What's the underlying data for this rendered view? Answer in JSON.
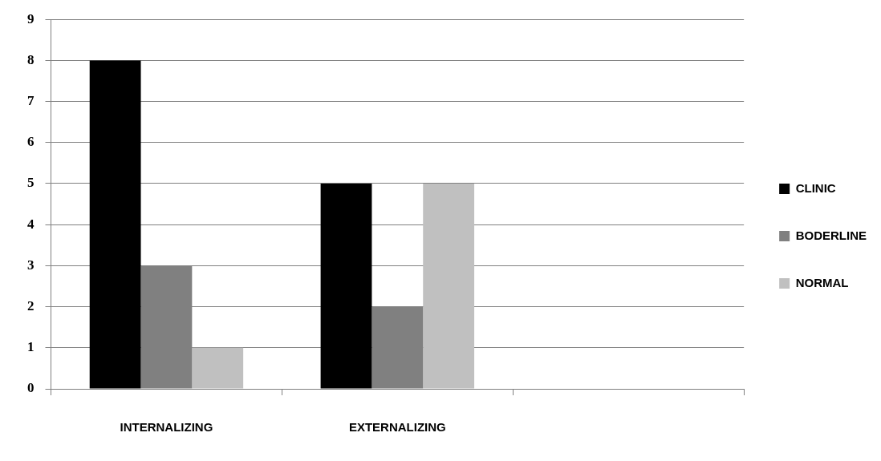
{
  "chart_data": {
    "type": "bar",
    "categories": [
      "INTERNALIZING",
      "EXTERNALIZING",
      null
    ],
    "series": [
      {
        "name": "CLINIC",
        "color": "#000000",
        "values": [
          8,
          5,
          null
        ]
      },
      {
        "name": "BODERLINE",
        "color": "#808080",
        "values": [
          3,
          2,
          null
        ]
      },
      {
        "name": "NORMAL",
        "color": "#c0c0c0",
        "values": [
          1,
          5,
          null
        ]
      }
    ],
    "ylim": [
      0,
      9
    ],
    "yticks": [
      0,
      1,
      2,
      3,
      4,
      5,
      6,
      7,
      8,
      9
    ],
    "grid": "y",
    "legend": "right"
  }
}
